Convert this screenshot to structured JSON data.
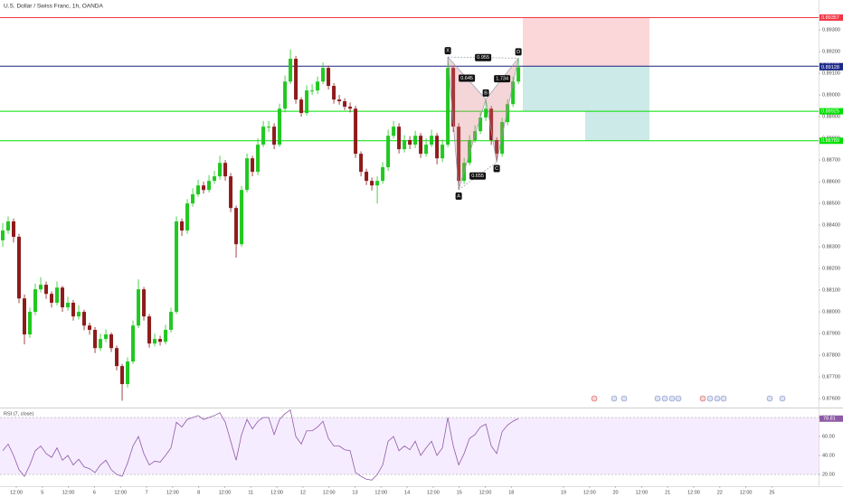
{
  "chart_data": [
    {
      "type": "candlestick",
      "title": "U.S. Dollar / Swiss Franc, 1h, OANDA",
      "up_color": "#21c821",
      "down_color": "#8e1b1b",
      "grid": false,
      "open": [
        0.8833,
        0.88375,
        0.88417,
        0.88346,
        0.88062,
        0.87896,
        0.88,
        0.88104,
        0.88125,
        0.88083,
        0.88042,
        0.88112,
        0.88021,
        0.88042,
        0.87979,
        0.88,
        0.87937,
        0.87917,
        0.87833,
        0.87875,
        0.87896,
        0.87833,
        0.8775,
        0.87667,
        0.87771,
        0.87937,
        0.88104,
        0.87979,
        0.87854,
        0.87875,
        0.87862,
        0.87917,
        0.88,
        0.88417,
        0.88375,
        0.885,
        0.88542,
        0.88583,
        0.88562,
        0.88604,
        0.88625,
        0.88687,
        0.88625,
        0.88479,
        0.88312,
        0.88562,
        0.88708,
        0.88646,
        0.88771,
        0.88854,
        0.88854,
        0.88771,
        0.88937,
        0.89062,
        0.89167,
        0.88979,
        0.88917,
        0.89021,
        0.89021,
        0.89062,
        0.89125,
        0.89042,
        0.88979,
        0.88971,
        0.88946,
        0.88937,
        0.88729,
        0.88646,
        0.88604,
        0.88583,
        0.88604,
        0.88667,
        0.88812,
        0.88854,
        0.8875,
        0.88792,
        0.88771,
        0.88812,
        0.88729,
        0.88771,
        0.88812,
        0.88708,
        0.88771,
        0.89125,
        0.88854,
        0.88604,
        0.88687,
        0.88792,
        0.88833,
        0.88896,
        0.88937,
        0.88792,
        0.88729,
        0.88875,
        0.88958,
        0.89062
      ],
      "high": [
        0.8841,
        0.8844,
        0.8843,
        0.8836,
        0.8808,
        0.8802,
        0.8813,
        0.8816,
        0.8814,
        0.88095,
        0.8814,
        0.8812,
        0.8807,
        0.88055,
        0.8803,
        0.8801,
        0.8795,
        0.8793,
        0.879,
        0.8792,
        0.87905,
        0.87845,
        0.8776,
        0.8779,
        0.8796,
        0.8815,
        0.88115,
        0.8799,
        0.879,
        0.8789,
        0.8794,
        0.8802,
        0.8844,
        0.8843,
        0.8852,
        0.8857,
        0.8861,
        0.886,
        0.8863,
        0.8865,
        0.8872,
        0.887,
        0.8864,
        0.8849,
        0.8858,
        0.8873,
        0.8872,
        0.888,
        0.8888,
        0.8888,
        0.8887,
        0.8896,
        0.8909,
        0.8921,
        0.8918,
        0.8899,
        0.89045,
        0.8905,
        0.89085,
        0.8915,
        0.89135,
        0.89055,
        0.89,
        0.88985,
        0.88965,
        0.8895,
        0.8874,
        0.8866,
        0.8862,
        0.88625,
        0.8869,
        0.8884,
        0.8888,
        0.8887,
        0.88815,
        0.8881,
        0.88835,
        0.88825,
        0.888,
        0.8884,
        0.88825,
        0.88795,
        0.89175,
        0.89135,
        0.8887,
        0.8871,
        0.88815,
        0.8886,
        0.8892,
        0.8898,
        0.8895,
        0.88805,
        0.88895,
        0.8898,
        0.89085,
        0.8917
      ],
      "low": [
        0.883,
        0.8836,
        0.8832,
        0.8804,
        0.8785,
        0.8788,
        0.87985,
        0.8809,
        0.8806,
        0.8802,
        0.8803,
        0.88,
        0.88005,
        0.8796,
        0.87965,
        0.87915,
        0.87895,
        0.8781,
        0.8782,
        0.8786,
        0.87815,
        0.8773,
        0.8759,
        0.8765,
        0.8776,
        0.87925,
        0.8796,
        0.87835,
        0.8784,
        0.87845,
        0.8785,
        0.87905,
        0.8799,
        0.8835,
        0.8836,
        0.88485,
        0.8853,
        0.88545,
        0.8855,
        0.8859,
        0.8861,
        0.88605,
        0.8846,
        0.8825,
        0.883,
        0.8855,
        0.88625,
        0.8863,
        0.8876,
        0.8883,
        0.8875,
        0.8876,
        0.8892,
        0.8905,
        0.8896,
        0.889,
        0.88905,
        0.89,
        0.89005,
        0.8905,
        0.89025,
        0.8896,
        0.88955,
        0.8893,
        0.8892,
        0.8871,
        0.88625,
        0.88585,
        0.8856,
        0.885,
        0.8859,
        0.8865,
        0.888,
        0.8873,
        0.88735,
        0.8875,
        0.88755,
        0.8871,
        0.88715,
        0.8876,
        0.8868,
        0.8869,
        0.8876,
        0.8883,
        0.88563,
        0.8859,
        0.88675,
        0.8878,
        0.8882,
        0.8888,
        0.8877,
        0.8869,
        0.88715,
        0.8886,
        0.88945,
        0.8905
      ],
      "close": [
        0.88375,
        0.88417,
        0.88346,
        0.88062,
        0.87896,
        0.88,
        0.88104,
        0.88125,
        0.88083,
        0.88042,
        0.88112,
        0.88021,
        0.88042,
        0.87979,
        0.88,
        0.87937,
        0.87917,
        0.87833,
        0.87875,
        0.87896,
        0.87833,
        0.8775,
        0.87667,
        0.87771,
        0.87937,
        0.88104,
        0.87979,
        0.87854,
        0.87875,
        0.87862,
        0.87917,
        0.88,
        0.88417,
        0.88375,
        0.885,
        0.88542,
        0.88583,
        0.88562,
        0.88604,
        0.88625,
        0.88687,
        0.88625,
        0.88479,
        0.88312,
        0.88562,
        0.88708,
        0.88646,
        0.88771,
        0.88854,
        0.88854,
        0.88771,
        0.88937,
        0.89062,
        0.89167,
        0.88979,
        0.88917,
        0.89021,
        0.89021,
        0.89062,
        0.89125,
        0.89042,
        0.88979,
        0.88971,
        0.88946,
        0.88937,
        0.88729,
        0.88646,
        0.88604,
        0.88583,
        0.88604,
        0.88667,
        0.88812,
        0.88854,
        0.8875,
        0.88792,
        0.88771,
        0.88812,
        0.88729,
        0.88771,
        0.88812,
        0.88708,
        0.88771,
        0.89125,
        0.88854,
        0.88604,
        0.88687,
        0.88792,
        0.88833,
        0.88896,
        0.88937,
        0.88792,
        0.88729,
        0.88875,
        0.88958,
        0.89062,
        0.89128
      ],
      "ylim": [
        0.87563,
        0.89438
      ],
      "yticks": [
        {
          "value": 0.876,
          "label": "0.87600"
        },
        {
          "value": 0.877,
          "label": "0.87700"
        },
        {
          "value": 0.878,
          "label": "0.87800"
        },
        {
          "value": 0.879,
          "label": "0.87900"
        },
        {
          "value": 0.88,
          "label": "0.88000"
        },
        {
          "value": 0.881,
          "label": "0.88100"
        },
        {
          "value": 0.882,
          "label": "0.88200"
        },
        {
          "value": 0.883,
          "label": "0.88300"
        },
        {
          "value": 0.884,
          "label": "0.88400"
        },
        {
          "value": 0.885,
          "label": "0.88500"
        },
        {
          "value": 0.886,
          "label": "0.88600"
        },
        {
          "value": 0.887,
          "label": "0.88700"
        },
        {
          "value": 0.888,
          "label": "0.88800"
        },
        {
          "value": 0.889,
          "label": "0.88900"
        },
        {
          "value": 0.89,
          "label": "0.89000"
        },
        {
          "value": 0.891,
          "label": "0.89100"
        },
        {
          "value": 0.892,
          "label": "0.89200"
        },
        {
          "value": 0.893,
          "label": "0.89300"
        }
      ],
      "xlim": [
        -0.5,
        150.3
      ],
      "xticks": [
        {
          "value": 2.5,
          "label": "12:00"
        },
        {
          "value": 7.3,
          "label": "5"
        },
        {
          "value": 12.1,
          "label": "12:00"
        },
        {
          "value": 16.9,
          "label": "6"
        },
        {
          "value": 21.7,
          "label": "12:00"
        },
        {
          "value": 26.5,
          "label": "7"
        },
        {
          "value": 31.3,
          "label": "12:00"
        },
        {
          "value": 36.1,
          "label": "8"
        },
        {
          "value": 40.9,
          "label": "12:00"
        },
        {
          "value": 45.7,
          "label": "11"
        },
        {
          "value": 50.5,
          "label": "12:00"
        },
        {
          "value": 55.3,
          "label": "12"
        },
        {
          "value": 60.1,
          "label": "12:00"
        },
        {
          "value": 64.9,
          "label": "13"
        },
        {
          "value": 69.7,
          "label": "12:00"
        },
        {
          "value": 74.5,
          "label": "14"
        },
        {
          "value": 79.3,
          "label": "12:00"
        },
        {
          "value": 84.1,
          "label": "15"
        },
        {
          "value": 88.9,
          "label": "12:00"
        },
        {
          "value": 93.7,
          "label": "18"
        },
        {
          "value": 103.3,
          "label": "19"
        },
        {
          "value": 108.1,
          "label": "12:00"
        },
        {
          "value": 112.9,
          "label": "20"
        },
        {
          "value": 117.7,
          "label": "12:00"
        },
        {
          "value": 122.5,
          "label": "21"
        },
        {
          "value": 127.3,
          "label": "12:00"
        },
        {
          "value": 132.1,
          "label": "22"
        },
        {
          "value": 136.9,
          "label": "12:00"
        },
        {
          "value": 141.7,
          "label": "25"
        }
      ],
      "levels": [
        {
          "value": 0.89357,
          "color": "#f23645"
        },
        {
          "value": 0.89133,
          "color": "#1a237e"
        },
        {
          "value": 0.88925,
          "color": "#00e000"
        },
        {
          "value": 0.88789,
          "color": "#00e000"
        }
      ],
      "pattern": {
        "points": [
          {
            "label": "X",
            "x": 82,
            "y": 0.89175
          },
          {
            "label": "A",
            "x": 84,
            "y": 0.88563
          },
          {
            "label": "B",
            "x": 89,
            "y": 0.8898
          },
          {
            "label": "C",
            "x": 91,
            "y": 0.8869
          },
          {
            "label": "D",
            "x": 95,
            "y": 0.8917
          }
        ],
        "ratios": [
          0.955,
          0.645,
          1.734,
          0.655
        ]
      }
    },
    {
      "type": "line",
      "title": "RSI (7, close)",
      "color": "#8e5aa8",
      "values": [
        45,
        52,
        40,
        25,
        18,
        30,
        45,
        50,
        42,
        38,
        48,
        35,
        40,
        30,
        36,
        28,
        26,
        22,
        30,
        35,
        25,
        20,
        18,
        32,
        50,
        60,
        42,
        30,
        34,
        33,
        40,
        48,
        75,
        70,
        78,
        80,
        82,
        78,
        80,
        82,
        85,
        75,
        55,
        35,
        62,
        78,
        68,
        76,
        80,
        80,
        62,
        78,
        84,
        88,
        60,
        52,
        66,
        66,
        70,
        76,
        58,
        50,
        50,
        46,
        45,
        22,
        18,
        15,
        14,
        20,
        30,
        55,
        60,
        45,
        50,
        46,
        55,
        40,
        48,
        55,
        40,
        48,
        80,
        50,
        30,
        42,
        58,
        62,
        70,
        73,
        50,
        42,
        65,
        72,
        76,
        78.81
      ],
      "ylim": [
        10.5,
        88.6
      ],
      "yticks": [
        {
          "value": 20,
          "label": "20.00"
        },
        {
          "value": 40,
          "label": "40.00"
        },
        {
          "value": 60,
          "label": "60.00"
        },
        {
          "value": 80,
          "label": "80.00"
        }
      ]
    }
  ]
}
